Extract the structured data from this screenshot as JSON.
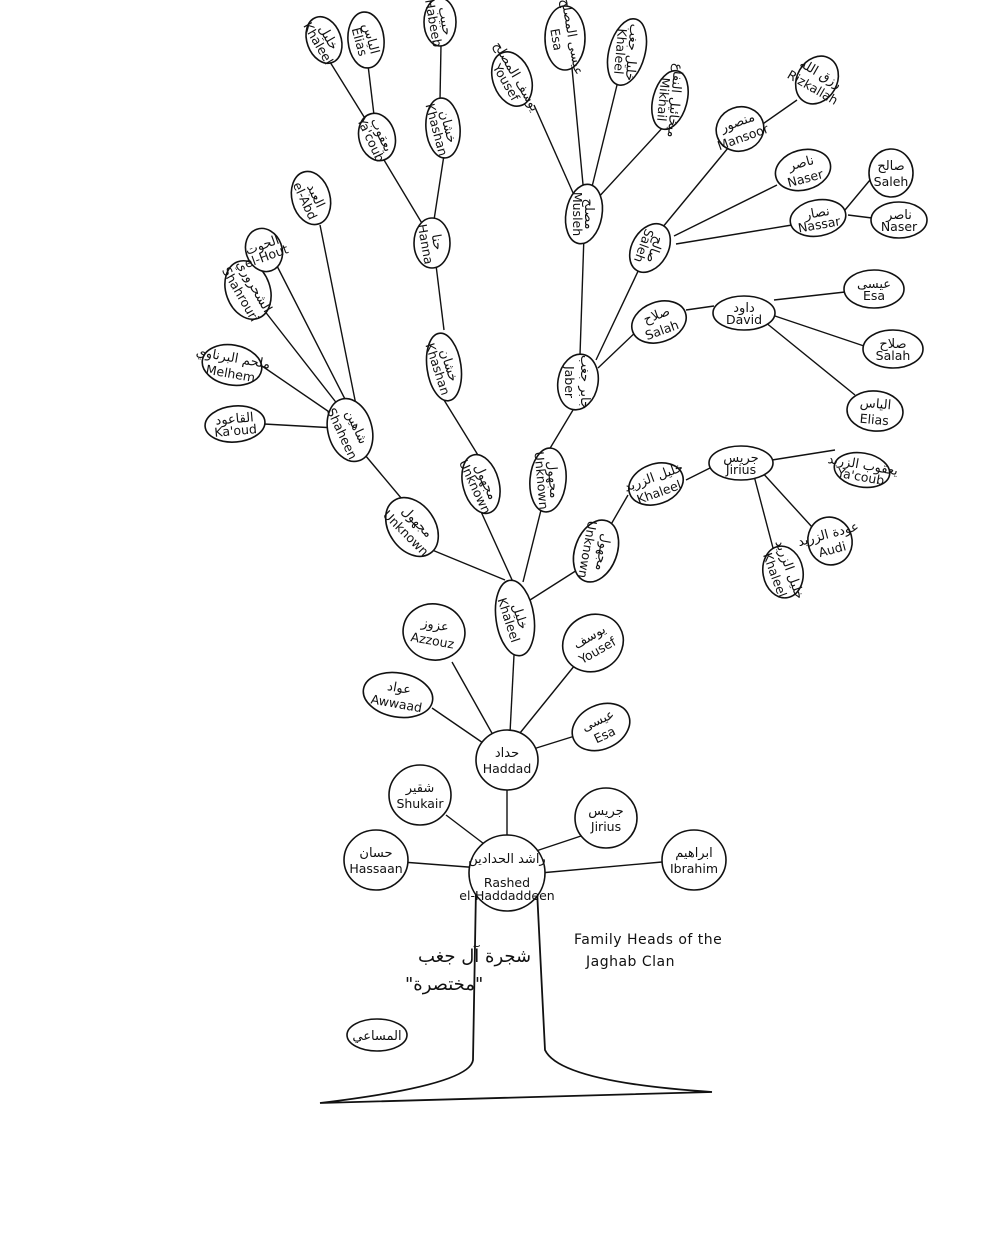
{
  "title": {
    "en_line1": "Family Heads of the",
    "en_line2": "Jaghab   Clan",
    "ar_line1": "شجرة آل جغب",
    "ar_line2": "\"مختصرة\""
  },
  "signature": "المساعي",
  "nodes": [
    {
      "id": "rashed",
      "en": "Rashed",
      "ar": "راشد الحدادين",
      "en2": "el-Haddaddeen"
    },
    {
      "id": "hassaan",
      "en": "Hassaan",
      "ar": "حسان"
    },
    {
      "id": "shukair",
      "en": "Shukair",
      "ar": "شقير"
    },
    {
      "id": "jirius1",
      "en": "Jirius",
      "ar": "جريس"
    },
    {
      "id": "ibrahim",
      "en": "Ibrahim",
      "ar": "ابراهيم"
    },
    {
      "id": "haddad",
      "en": "Haddad",
      "ar": "حداد"
    },
    {
      "id": "awwaad",
      "en": "Awwaad",
      "ar": "عواد"
    },
    {
      "id": "esa1",
      "en": "Esa",
      "ar": "عيسى"
    },
    {
      "id": "azzouz",
      "en": "Azzouz",
      "ar": "عزوز"
    },
    {
      "id": "yousef",
      "en": "Yousef",
      "ar": "يوسف"
    },
    {
      "id": "khaleel1",
      "en": "Khaleel",
      "ar": "خليل"
    },
    {
      "id": "unk1",
      "en": "Unknown",
      "ar": "مجهول"
    },
    {
      "id": "unk2",
      "en": "Unknown",
      "ar": "مجهول"
    },
    {
      "id": "unk3",
      "en": "Unknown",
      "ar": "مجهول"
    },
    {
      "id": "unk4",
      "en": "Unknown",
      "ar": "مجهول"
    },
    {
      "id": "shaheen",
      "en": "Shaheen",
      "ar": "شاهين"
    },
    {
      "id": "kaoud",
      "en": "Ka'oud",
      "ar": "القاعود"
    },
    {
      "id": "melhem",
      "en": "Melhem",
      "ar": "ملحم البرناوي"
    },
    {
      "id": "shahrouri",
      "en": "Shahrouri",
      "ar": "الشحروري"
    },
    {
      "id": "elhout",
      "en": "el-Hout",
      "ar": "الحوت"
    },
    {
      "id": "elabd",
      "en": "el-Abd",
      "ar": "العبد"
    },
    {
      "id": "khashan1",
      "en": "Khashan",
      "ar": "خشان"
    },
    {
      "id": "hanna",
      "en": "Hanna",
      "ar": "حنا"
    },
    {
      "id": "yacoub1",
      "en": "Ya'coub",
      "ar": "يعقوب"
    },
    {
      "id": "khashan2",
      "en": "Khashan",
      "ar": "خشان"
    },
    {
      "id": "khaleel2",
      "en": "Khaleel",
      "ar": "خليل"
    },
    {
      "id": "elias1",
      "en": "Elias",
      "ar": "الياس"
    },
    {
      "id": "habeeb",
      "en": "Habeeb",
      "ar": "حبيب"
    },
    {
      "id": "jaber",
      "en": "Jaber",
      "ar": "جابر جغب"
    },
    {
      "id": "musleh",
      "en": "Musleh",
      "ar": "مصلح"
    },
    {
      "id": "yousef2",
      "en": "Yousef",
      "ar": "يوسف المصلح"
    },
    {
      "id": "esa2",
      "en": "Esa",
      "ar": "عيسى المصلح"
    },
    {
      "id": "khaleel3",
      "en": "Khaleel",
      "ar": "خليل جغب"
    },
    {
      "id": "mikhail",
      "en": "Mikhail",
      "ar": "ميخائيل النفاع"
    },
    {
      "id": "saleh1",
      "en": "Saleh",
      "ar": "صالح"
    },
    {
      "id": "mansoor",
      "en": "Mansoor",
      "ar": "منصور"
    },
    {
      "id": "rizkallah",
      "en": "Rizkallah",
      "ar": "رزق الله"
    },
    {
      "id": "naser1",
      "en": "Naser",
      "ar": "ناصر"
    },
    {
      "id": "nassar",
      "en": "Nassar",
      "ar": "نصار"
    },
    {
      "id": "saleh2",
      "en": "Saleh",
      "ar": "صالح"
    },
    {
      "id": "naser2",
      "en": "Naser",
      "ar": "ناصر"
    },
    {
      "id": "salah1",
      "en": "Salah",
      "ar": "صلاح"
    },
    {
      "id": "david",
      "en": "David",
      "ar": "داود"
    },
    {
      "id": "esa3",
      "en": "Esa",
      "ar": "عيسى"
    },
    {
      "id": "salah2",
      "en": "Salah",
      "ar": "صلاح"
    },
    {
      "id": "elias2",
      "en": "Elias",
      "ar": "الياس"
    },
    {
      "id": "khaleel4",
      "en": "Khaleel",
      "ar": "خليل الزريد"
    },
    {
      "id": "jirius2",
      "en": "Jirius",
      "ar": "جريس"
    },
    {
      "id": "yacoub2",
      "en": "Ya'coub",
      "ar": "يعقوب الزريد"
    },
    {
      "id": "audi",
      "en": "Audi",
      "ar": "عودة الزريد"
    },
    {
      "id": "khaleel5",
      "en": "Khaleel",
      "ar": "خليل الزريد"
    }
  ]
}
